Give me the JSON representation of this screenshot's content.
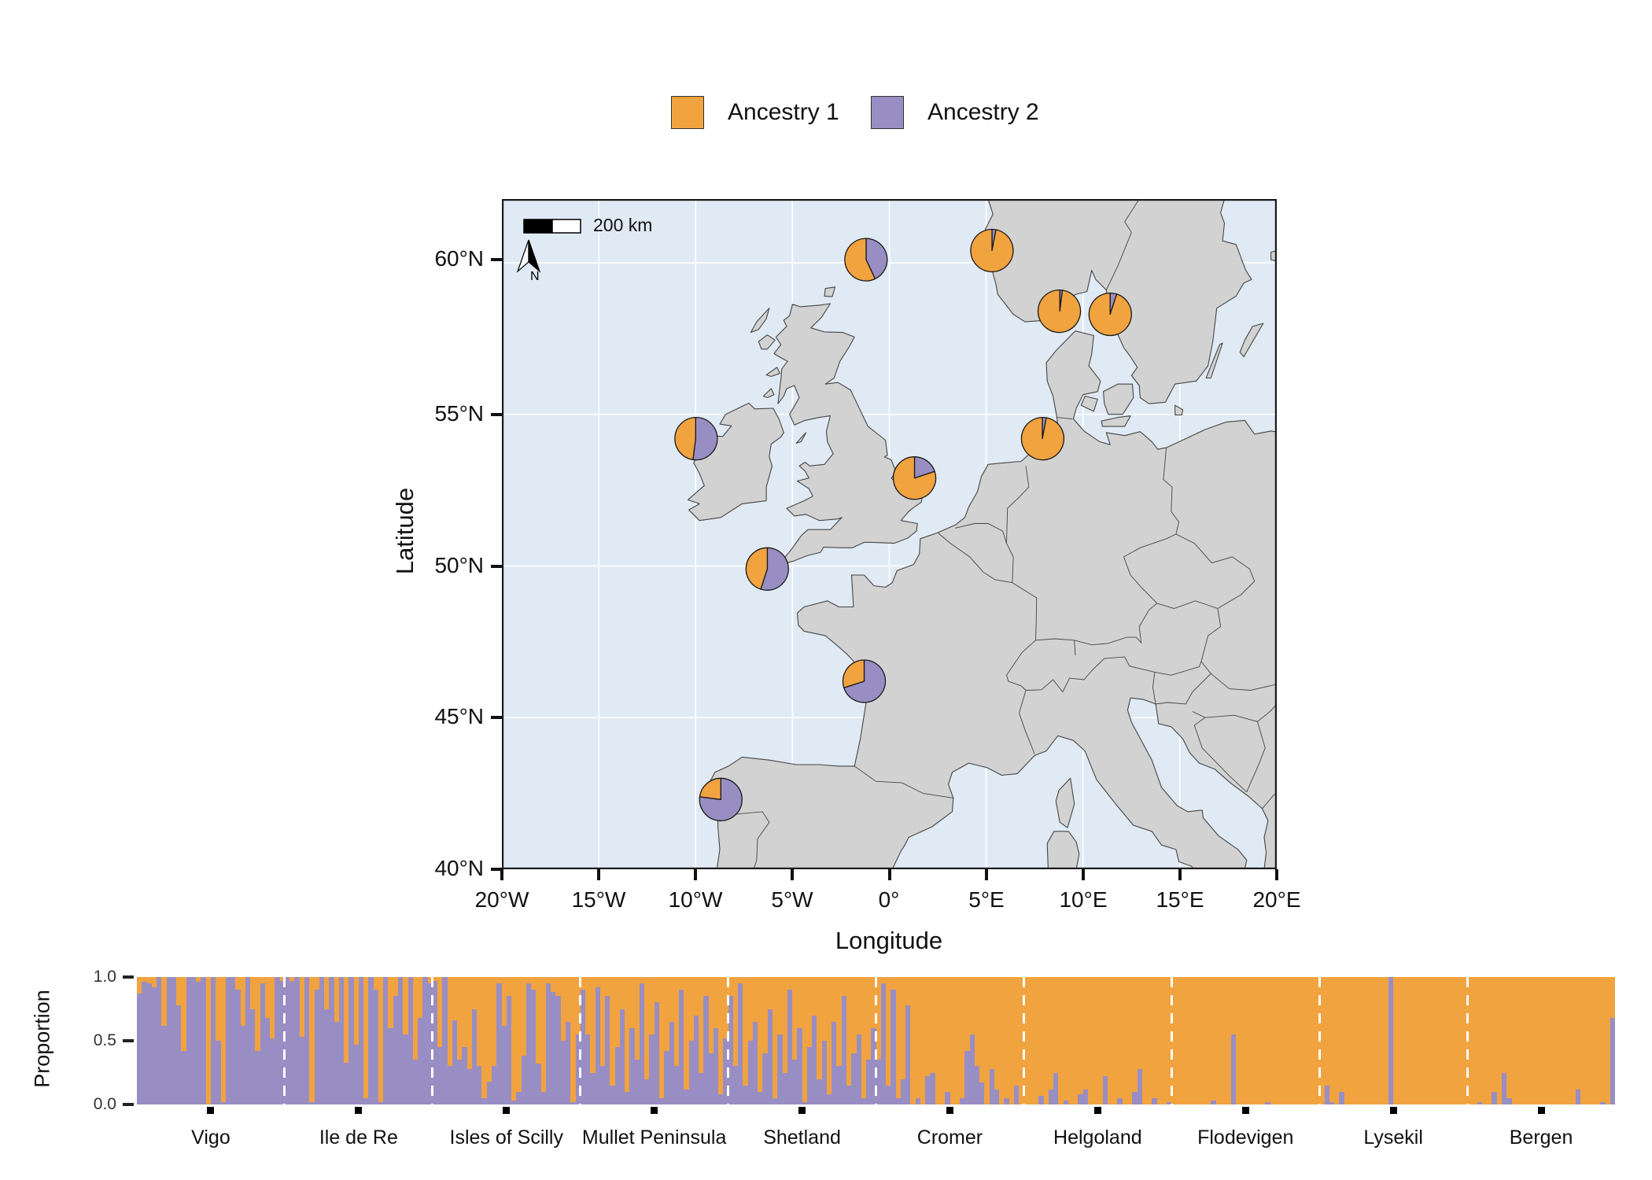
{
  "legend": {
    "items": [
      {
        "label": "Ancestry 1",
        "color": "#F1A340"
      },
      {
        "label": "Ancestry 2",
        "color": "#998EC3"
      }
    ]
  },
  "map": {
    "x_axis_title": "Longitude",
    "y_axis_title": "Latitude",
    "lat_ticks": [
      "60°N",
      "55°N",
      "50°N",
      "45°N",
      "40°N"
    ],
    "lon_ticks": [
      "20°W",
      "15°W",
      "10°W",
      "5°W",
      "0°",
      "5°E",
      "10°E",
      "15°E",
      "20°E"
    ],
    "scale_bar_label": "200 km",
    "north_label": "N",
    "sea_color": "#E0EAF4",
    "land_color": "#D2D2D2",
    "border_color": "#454545",
    "grid_color": "#FFFFFF"
  },
  "chart_data": {
    "type": "map-pies + stacked-bar admixture",
    "legend_entries": [
      "Ancestry 1",
      "Ancestry 2"
    ],
    "ancestry_colors": {
      "Ancestry 1": "#F1A340",
      "Ancestry 2": "#998EC3"
    },
    "pies": [
      {
        "name": "Vigo",
        "lon": -8.7,
        "lat": 42.3,
        "ancestry1": 0.23,
        "ancestry2": 0.77
      },
      {
        "name": "Ile de Re",
        "lon": -1.3,
        "lat": 46.2,
        "ancestry1": 0.3,
        "ancestry2": 0.7
      },
      {
        "name": "Isles of Scilly",
        "lon": -6.3,
        "lat": 49.9,
        "ancestry1": 0.45,
        "ancestry2": 0.55
      },
      {
        "name": "Mullet Peninsula",
        "lon": -10.0,
        "lat": 54.2,
        "ancestry1": 0.48,
        "ancestry2": 0.52
      },
      {
        "name": "Shetland",
        "lon": -1.2,
        "lat": 60.1,
        "ancestry1": 0.57,
        "ancestry2": 0.43
      },
      {
        "name": "Cromer",
        "lon": 1.3,
        "lat": 52.9,
        "ancestry1": 0.8,
        "ancestry2": 0.2
      },
      {
        "name": "Helgoland",
        "lon": 7.9,
        "lat": 54.2,
        "ancestry1": 0.97,
        "ancestry2": 0.03
      },
      {
        "name": "Flodevigen",
        "lon": 8.8,
        "lat": 58.4,
        "ancestry1": 0.98,
        "ancestry2": 0.02
      },
      {
        "name": "Lysekil",
        "lon": 11.4,
        "lat": 58.3,
        "ancestry1": 0.95,
        "ancestry2": 0.05
      },
      {
        "name": "Bergen",
        "lon": 5.3,
        "lat": 60.4,
        "ancestry1": 0.97,
        "ancestry2": 0.03
      }
    ],
    "admixture": {
      "ylabel": "Proportion",
      "yticks": [
        "1.0",
        "0.5",
        "0.0"
      ],
      "ylim": [
        0,
        1
      ],
      "bar_order": "Ancestry 2 (purple) stacked at bottom, Ancestry 1 (orange) on top",
      "groups": [
        {
          "name": "Vigo",
          "ancestry2": [
            0.87,
            0.96,
            0.95,
            0.92,
            1,
            0.62,
            1,
            1,
            0.78,
            0.42,
            1,
            1,
            0.96,
            1,
            0,
            1,
            0.5,
            0.02,
            1,
            1,
            0.9,
            0.62,
            1,
            0.75,
            0.42,
            0.95,
            0.68,
            0.52,
            1,
            0.97
          ]
        },
        {
          "name": "Ile de Re",
          "ancestry2": [
            1,
            0.97,
            1,
            0.53,
            1,
            0.02,
            0.9,
            1,
            0.75,
            1,
            0.65,
            1,
            0.33,
            1,
            0.47,
            1,
            0.05,
            1,
            0.9,
            0.02,
            1,
            0.6,
            0.85,
            1,
            0.55,
            1,
            0.35,
            0.68,
            1,
            0.95
          ]
        },
        {
          "name": "Isles of Scilly",
          "ancestry2": [
            0.97,
            0.45,
            1,
            0.3,
            0.66,
            0.35,
            0.45,
            0.28,
            0.75,
            0.3,
            0.05,
            0.18,
            0.3,
            0.95,
            0.62,
            0.85,
            0.03,
            0.1,
            0.38,
            0.95,
            0.9,
            0.32,
            0.1,
            0.95,
            0.88,
            0.85,
            0.5,
            0.65,
            0.02,
            0.55
          ]
        },
        {
          "name": "Mullet Peninsula",
          "ancestry2": [
            0.9,
            0.55,
            0.25,
            0.92,
            0.3,
            0.85,
            0.15,
            0.45,
            0.75,
            0.1,
            0.6,
            0.35,
            0.95,
            0.2,
            0.55,
            0.8,
            0.05,
            0.42,
            0.65,
            0.3,
            0.9,
            0.12,
            0.5,
            0.7,
            0.25,
            0.85,
            0.4,
            0.6,
            0.08,
            0.52
          ]
        },
        {
          "name": "Shetland",
          "ancestry2": [
            0.85,
            0.3,
            0.95,
            0.15,
            0.5,
            0.65,
            0.1,
            0.4,
            0.75,
            0.05,
            0.55,
            0.25,
            0.9,
            0.35,
            0.6,
            0.02,
            0.45,
            0.7,
            0.2,
            0.5,
            0.08,
            0.65,
            0.3,
            0.85,
            0.15,
            0.4,
            0.55,
            0.05,
            0.35,
            0.6
          ]
        },
        {
          "name": "Cromer",
          "ancestry2": [
            0.35,
            0.95,
            0.15,
            0.9,
            0.05,
            0.2,
            0.78,
            0,
            0.05,
            0,
            0.22,
            0.25,
            0,
            0,
            0.1,
            0,
            0,
            0.05,
            0.42,
            0.55,
            0.3,
            0.17,
            0,
            0.28,
            0.12,
            0,
            0.05,
            0,
            0.15,
            0
          ]
        },
        {
          "name": "Helgoland",
          "ancestry2": [
            0,
            0,
            0,
            0.07,
            0,
            0.12,
            0.25,
            0,
            0.03,
            0,
            0,
            0.08,
            0.12,
            0,
            0,
            0,
            0.22,
            0,
            0,
            0.05,
            0,
            0,
            0.1,
            0.28,
            0,
            0,
            0.05,
            0,
            0,
            0.02
          ]
        },
        {
          "name": "Flodevigen",
          "ancestry2": [
            0,
            0,
            0,
            0,
            0,
            0,
            0,
            0,
            0.03,
            0,
            0,
            0,
            0.55,
            0,
            0,
            0,
            0,
            0,
            0,
            0.02,
            0,
            0,
            0,
            0,
            0,
            0,
            0,
            0,
            0,
            0
          ]
        },
        {
          "name": "Lysekil",
          "ancestry2": [
            0,
            0.15,
            0.02,
            0,
            0.1,
            0,
            0,
            0,
            0,
            0,
            0,
            0,
            0,
            0,
            1,
            0,
            0,
            0,
            0,
            0,
            0,
            0,
            0,
            0,
            0,
            0,
            0,
            0,
            0,
            0
          ]
        },
        {
          "name": "Bergen",
          "ancestry2": [
            0,
            0,
            0.02,
            0,
            0,
            0.1,
            0,
            0.25,
            0.05,
            0,
            0,
            0,
            0,
            0,
            0,
            0,
            0,
            0,
            0,
            0,
            0,
            0,
            0.12,
            0,
            0,
            0,
            0,
            0.02,
            0,
            0.68
          ]
        }
      ]
    }
  }
}
